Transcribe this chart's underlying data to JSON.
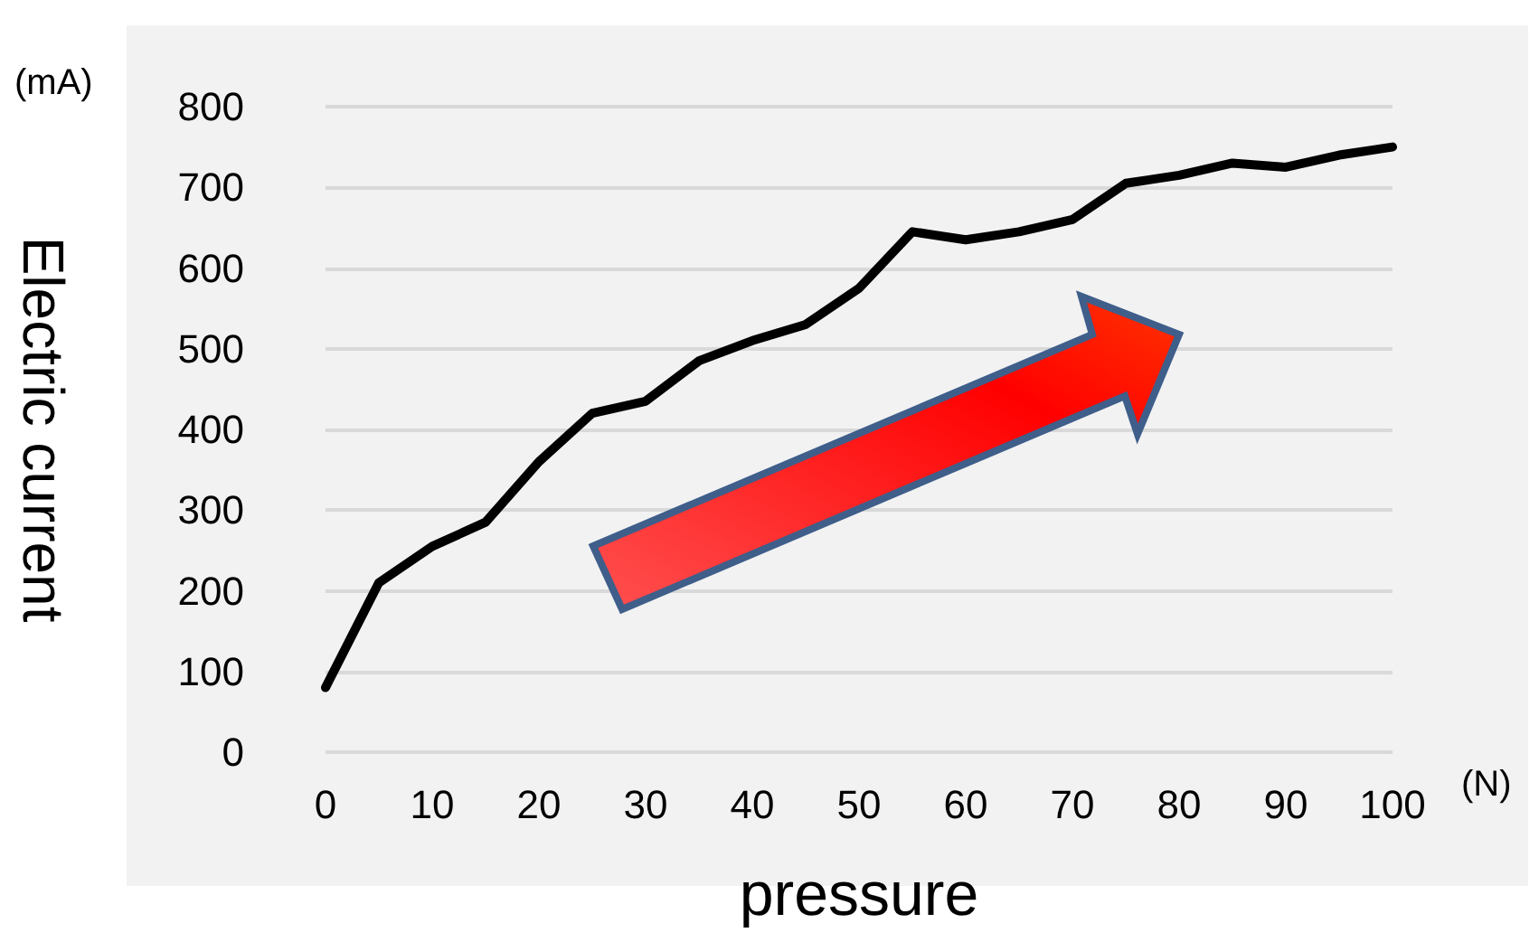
{
  "chart_data": {
    "type": "line",
    "xlabel": "pressure",
    "ylabel": "Electric current",
    "annotations": [
      "(mA)",
      "(N)"
    ],
    "x": [
      0,
      5,
      10,
      15,
      20,
      25,
      30,
      35,
      40,
      45,
      50,
      55,
      60,
      65,
      70,
      75,
      80,
      85,
      90,
      95,
      100
    ],
    "series": [
      {
        "color": "#000000",
        "values": [
          80,
          210,
          255,
          285,
          360,
          420,
          435,
          485,
          510,
          530,
          575,
          645,
          635,
          645,
          660,
          705,
          715,
          730,
          725,
          740,
          750
        ]
      }
    ],
    "xlim": [
      0,
      100
    ],
    "xticks": [
      0,
      10,
      20,
      30,
      40,
      50,
      60,
      70,
      80,
      90,
      100
    ],
    "ylim": [
      0,
      800
    ],
    "yticks": [
      0,
      100,
      200,
      300,
      400,
      500,
      600,
      700,
      800
    ],
    "grid": "y",
    "marker": "none",
    "line_style": "solid"
  }
}
